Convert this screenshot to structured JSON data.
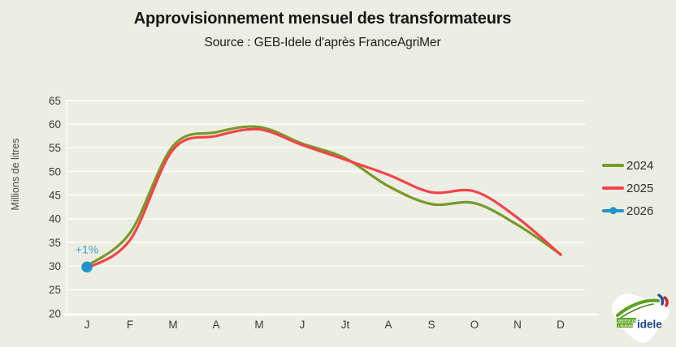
{
  "header": {
    "title": "Approvisionnement mensuel des transformateurs",
    "subtitle": "Source : GEB-Idele d'après FranceAgriMer"
  },
  "chart_data": {
    "type": "line",
    "title": "Approvisionnement mensuel des transformateurs",
    "subtitle": "Source : GEB-Idele d'après FranceAgriMer",
    "xlabel": "",
    "ylabel": "Millions de litres",
    "categories": [
      "J",
      "F",
      "M",
      "A",
      "M",
      "J",
      "Jt",
      "A",
      "S",
      "O",
      "N",
      "D"
    ],
    "ylim": [
      20,
      65
    ],
    "yticks": [
      65,
      60,
      55,
      50,
      45,
      40,
      35,
      30,
      25,
      20
    ],
    "grid": true,
    "legend_position": "right",
    "background_color": "#edeee3",
    "gridline_color": "#fbfbf5",
    "series": [
      {
        "name": "2024",
        "color": "#78992b",
        "values": [
          30.0,
          37.0,
          55.4,
          58.3,
          59.4,
          55.9,
          52.8,
          46.9,
          43.1,
          43.3,
          38.7,
          32.5
        ]
      },
      {
        "name": "2025",
        "color": "#f4434b",
        "values": [
          29.5,
          35.5,
          54.6,
          57.5,
          58.9,
          55.6,
          52.5,
          49.3,
          45.6,
          45.8,
          40.2,
          32.4
        ]
      },
      {
        "name": "2026",
        "color": "#2095cc",
        "marker": "circle",
        "values": [
          29.8
        ]
      }
    ],
    "annotation": {
      "text": "+1%",
      "color": "#3ba1d8",
      "month_index": 0,
      "y": 33.4
    }
  },
  "logo": {
    "brand": "idele",
    "org_line1": "INSTITUT DE",
    "org_line2": "L'ÉLEVAGE"
  }
}
